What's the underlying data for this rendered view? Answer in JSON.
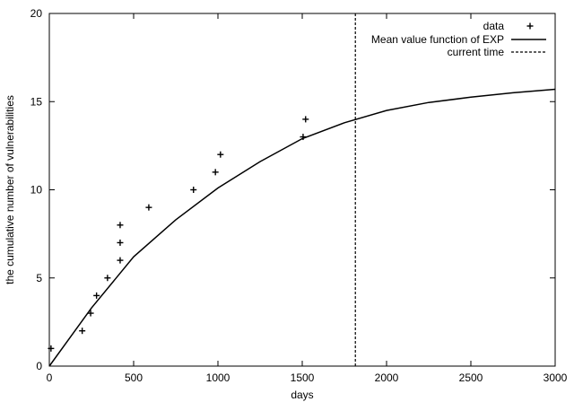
{
  "chart_data": {
    "type": "scatter",
    "xlabel": "days",
    "ylabel": "the cumulative number of vulnerabilities",
    "xlim": [
      0,
      3000
    ],
    "ylim": [
      0,
      20
    ],
    "x_ticks": [
      0,
      500,
      1000,
      1500,
      2000,
      2500,
      3000
    ],
    "y_ticks": [
      0,
      5,
      10,
      15,
      20
    ],
    "grid": false,
    "legend_position": "top-right",
    "series": [
      {
        "name": "data",
        "kind": "points",
        "marker": "+",
        "points": [
          {
            "x": 10,
            "y": 1
          },
          {
            "x": 195,
            "y": 2
          },
          {
            "x": 245,
            "y": 3
          },
          {
            "x": 280,
            "y": 4
          },
          {
            "x": 345,
            "y": 5
          },
          {
            "x": 420,
            "y": 6
          },
          {
            "x": 420,
            "y": 7
          },
          {
            "x": 420,
            "y": 8
          },
          {
            "x": 590,
            "y": 9
          },
          {
            "x": 855,
            "y": 10
          },
          {
            "x": 985,
            "y": 11
          },
          {
            "x": 1015,
            "y": 12
          },
          {
            "x": 1505,
            "y": 13
          },
          {
            "x": 1520,
            "y": 14
          }
        ]
      },
      {
        "name": "Mean value function of EXP",
        "kind": "line",
        "style": "solid",
        "points": [
          {
            "x": 0,
            "y": 0
          },
          {
            "x": 250,
            "y": 3.3
          },
          {
            "x": 500,
            "y": 6.2
          },
          {
            "x": 750,
            "y": 8.3
          },
          {
            "x": 1000,
            "y": 10.1
          },
          {
            "x": 1250,
            "y": 11.6
          },
          {
            "x": 1500,
            "y": 12.9
          },
          {
            "x": 1750,
            "y": 13.8
          },
          {
            "x": 2000,
            "y": 14.5
          },
          {
            "x": 2250,
            "y": 14.95
          },
          {
            "x": 2500,
            "y": 15.25
          },
          {
            "x": 2750,
            "y": 15.5
          },
          {
            "x": 3000,
            "y": 15.7
          }
        ]
      },
      {
        "name": "current time",
        "kind": "vline",
        "style": "dashed",
        "x": 1815
      }
    ]
  }
}
